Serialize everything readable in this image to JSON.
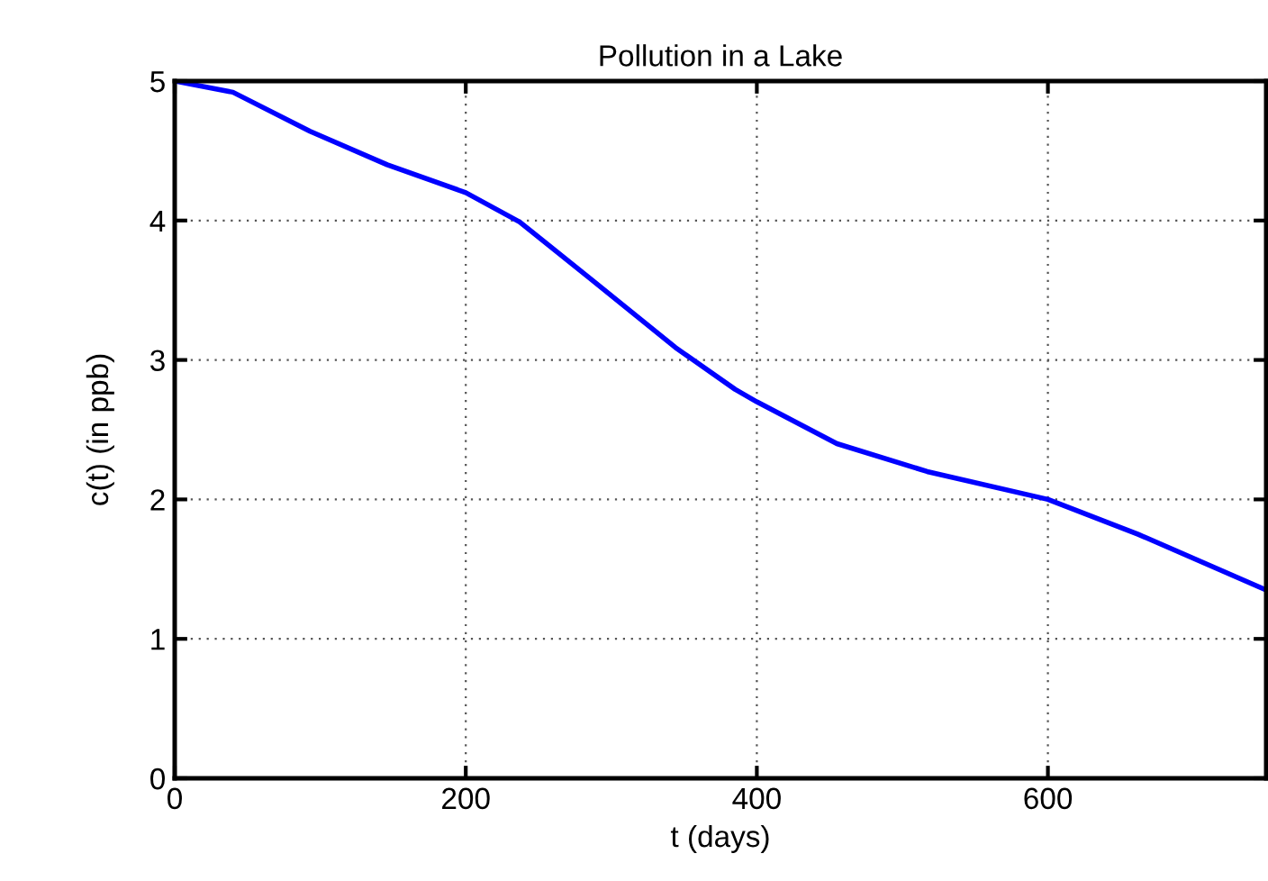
{
  "chart_data": {
    "type": "line",
    "title": "Pollution in a Lake",
    "xlabel": "t (days)",
    "ylabel": "c(t) (in ppb)",
    "x": [
      0,
      40,
      93,
      146,
      200,
      237,
      286,
      344,
      385,
      400,
      455,
      517,
      600,
      662,
      750
    ],
    "series": [
      {
        "color": "#0000ff",
        "values": [
          5.0,
          4.92,
          4.64,
          4.4,
          4.2,
          3.99,
          3.58,
          3.09,
          2.79,
          2.7,
          2.4,
          2.2,
          2.0,
          1.75,
          1.35
        ]
      }
    ],
    "xlim": [
      0,
      750
    ],
    "ylim": [
      0,
      5
    ],
    "xticks": [
      0,
      200,
      400,
      600
    ],
    "yticks": [
      0,
      1,
      2,
      3,
      4,
      5
    ],
    "grid": true,
    "line_style": "solid"
  }
}
